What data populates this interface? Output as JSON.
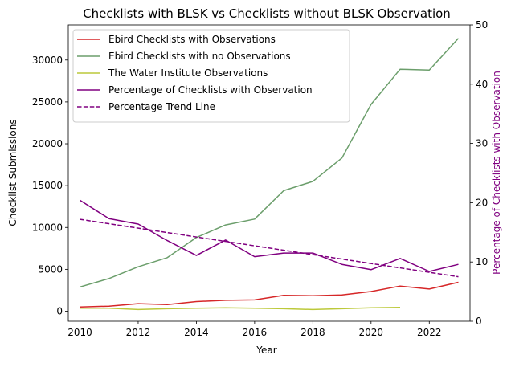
{
  "chart_data": {
    "type": "line",
    "title": "Checklists with BLSK vs Checklists without BLSK Observation",
    "xlabel": "Year",
    "ylabel": "Checklist Submissions",
    "y2label": "Percentage of Checklists with Observation",
    "xlim": [
      2009.6,
      2023.4
    ],
    "ylim": [
      -1200,
      34200
    ],
    "y2lim": [
      0,
      50
    ],
    "xticks": [
      "2010",
      "2012",
      "2014",
      "2016",
      "2018",
      "2020",
      "2022"
    ],
    "yticks": [
      "0",
      "5000",
      "10000",
      "15000",
      "20000",
      "25000",
      "30000"
    ],
    "y2ticks": [
      "0",
      "10",
      "20",
      "30",
      "40",
      "50"
    ],
    "grid": false,
    "legend_position": "top-left",
    "series": [
      {
        "name": "Ebird Checklists with Observations",
        "axis": "left",
        "color": "#d62728",
        "style": "solid",
        "x": [
          2010,
          2011,
          2012,
          2013,
          2014,
          2015,
          2016,
          2017,
          2018,
          2019,
          2020,
          2021,
          2022,
          2023
        ],
        "y": [
          500,
          600,
          900,
          800,
          1150,
          1300,
          1350,
          1900,
          1850,
          1950,
          2350,
          3000,
          2650,
          3450
        ]
      },
      {
        "name": "Ebird Checklists with no Observations",
        "axis": "left",
        "color": "#6b9e6b",
        "style": "solid",
        "x": [
          2010,
          2011,
          2012,
          2013,
          2014,
          2015,
          2016,
          2017,
          2018,
          2019,
          2020,
          2021,
          2022,
          2023
        ],
        "y": [
          2900,
          3900,
          5300,
          6400,
          8800,
          10300,
          11000,
          14400,
          15500,
          18300,
          24700,
          28900,
          28800,
          32600
        ]
      },
      {
        "name": "The Water Institute Observations",
        "axis": "left",
        "color": "#bcc93a",
        "style": "solid",
        "x": [
          2010,
          2011,
          2012,
          2013,
          2014,
          2015,
          2016,
          2017,
          2018,
          2019,
          2020,
          2021
        ],
        "y": [
          350,
          350,
          200,
          300,
          350,
          400,
          350,
          300,
          200,
          300,
          400,
          450
        ]
      },
      {
        "name": "Percentage of Checklists with Observation",
        "axis": "right",
        "color": "#800080",
        "style": "solid",
        "x": [
          2010,
          2011,
          2012,
          2013,
          2014,
          2015,
          2016,
          2017,
          2018,
          2019,
          2020,
          2021,
          2022,
          2023
        ],
        "y": [
          20.4,
          17.3,
          16.4,
          13.6,
          11.1,
          13.7,
          10.9,
          11.5,
          11.5,
          9.6,
          8.7,
          10.6,
          8.4,
          9.6
        ]
      },
      {
        "name": "Percentage Trend Line",
        "axis": "right",
        "color": "#800080",
        "style": "dashed",
        "x": [
          2010,
          2023
        ],
        "y": [
          17.2,
          7.5
        ]
      }
    ]
  }
}
